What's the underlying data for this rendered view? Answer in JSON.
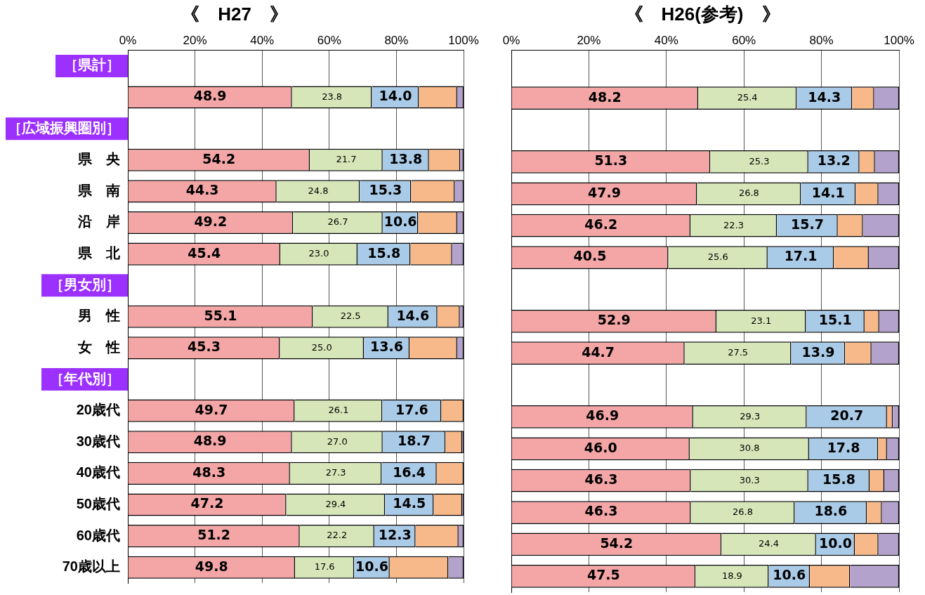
{
  "chart_data": [
    {
      "type": "bar",
      "title": "《　H27　》",
      "orientation": "horizontal",
      "stacked": true,
      "grid": "x",
      "legend": false,
      "categories": [
        "［県計］",
        null,
        "［広域振興圏別］",
        "県　央",
        "県　南",
        "沿　岸",
        "県　北",
        "［男女別］",
        "男　性",
        "女　性",
        "［年代別］",
        "20歳代",
        "30歳代",
        "40歳代",
        "50歳代",
        "60歳代",
        "70歳以上"
      ],
      "xlim": [
        0,
        100
      ],
      "xticks": [
        {
          "value": 0,
          "label": "0%"
        },
        {
          "value": 20,
          "label": "20%"
        },
        {
          "value": 40,
          "label": "40%"
        },
        {
          "value": 60,
          "label": "60%"
        },
        {
          "value": 80,
          "label": "80%"
        },
        {
          "value": 100,
          "label": "100%"
        }
      ],
      "series": [
        {
          "color": "#f4a6a6",
          "values": [
            null,
            48.9,
            null,
            54.2,
            44.3,
            49.2,
            45.4,
            null,
            55.1,
            45.3,
            null,
            49.7,
            48.9,
            48.3,
            47.2,
            51.2,
            49.8
          ],
          "value_labels": [
            null,
            "48.9",
            null,
            "54.2",
            "44.3",
            "49.2",
            "45.4",
            null,
            "55.1",
            "45.3",
            null,
            "49.7",
            "48.9",
            "48.3",
            "47.2",
            "51.2",
            "49.8"
          ]
        },
        {
          "color": "#d6e6b8",
          "values": [
            null,
            23.8,
            null,
            21.7,
            24.8,
            26.7,
            23.0,
            null,
            22.5,
            25.0,
            null,
            26.1,
            27.0,
            27.3,
            29.4,
            22.2,
            17.6
          ],
          "value_labels": [
            null,
            "23.8",
            null,
            "21.7",
            "24.8",
            "26.7",
            "23.0",
            null,
            "22.5",
            "25.0",
            null,
            "26.1",
            "27.0",
            "27.3",
            "29.4",
            "22.2",
            "17.6"
          ]
        },
        {
          "color": "#a9cbe8",
          "values": [
            null,
            14.0,
            null,
            13.8,
            15.3,
            10.6,
            15.8,
            null,
            14.6,
            13.6,
            null,
            17.6,
            18.7,
            16.4,
            14.5,
            12.3,
            10.6
          ],
          "value_labels": [
            null,
            "14.0",
            null,
            "13.8",
            "15.3",
            "10.6",
            "15.8",
            null,
            "14.6",
            "13.6",
            null,
            "17.6",
            "18.7",
            "16.4",
            "14.5",
            "12.3",
            "10.6"
          ]
        },
        {
          "color": "#f7b98a",
          "values": [
            null,
            11.4,
            null,
            9.3,
            13.0,
            11.6,
            12.4,
            null,
            6.7,
            14.2,
            null,
            6.6,
            5.0,
            8.0,
            8.5,
            12.8,
            17.5
          ]
        },
        {
          "color": "#b3a2cc",
          "values": [
            null,
            1.9,
            null,
            1.0,
            2.6,
            1.9,
            3.4,
            null,
            1.1,
            1.9,
            null,
            0,
            0.4,
            0,
            0.4,
            1.5,
            4.5
          ]
        }
      ]
    },
    {
      "type": "bar",
      "title": "《　H26(参考)　》",
      "orientation": "horizontal",
      "stacked": true,
      "grid": "x",
      "legend": false,
      "categories": [
        null,
        null,
        null,
        null,
        null,
        null,
        null,
        null,
        null,
        null,
        null,
        null,
        null,
        null,
        null,
        null,
        null
      ],
      "xlim": [
        0,
        100
      ],
      "xticks": [
        {
          "value": 0,
          "label": "0%"
        },
        {
          "value": 20,
          "label": "20%"
        },
        {
          "value": 40,
          "label": "40%"
        },
        {
          "value": 60,
          "label": "60%"
        },
        {
          "value": 80,
          "label": "80%"
        },
        {
          "value": 100,
          "label": "100%"
        }
      ],
      "series": [
        {
          "color": "#f4a6a6",
          "values": [
            null,
            48.2,
            null,
            51.3,
            47.9,
            46.2,
            40.5,
            null,
            52.9,
            44.7,
            null,
            46.9,
            46.0,
            46.3,
            46.3,
            54.2,
            47.5
          ],
          "value_labels": [
            null,
            "48.2",
            null,
            "51.3",
            "47.9",
            "46.2",
            "40.5",
            null,
            "52.9",
            "44.7",
            null,
            "46.9",
            "46.0",
            "46.3",
            "46.3",
            "54.2",
            "47.5"
          ]
        },
        {
          "color": "#d6e6b8",
          "values": [
            null,
            25.4,
            null,
            25.3,
            26.8,
            22.3,
            25.6,
            null,
            23.1,
            27.5,
            null,
            29.3,
            30.8,
            30.3,
            26.8,
            24.4,
            18.9
          ],
          "value_labels": [
            null,
            "25.4",
            null,
            "25.3",
            "26.8",
            "22.3",
            "25.6",
            null,
            "23.1",
            "27.5",
            null,
            "29.3",
            "30.8",
            "30.3",
            "26.8",
            "24.4",
            "18.9"
          ]
        },
        {
          "color": "#a9cbe8",
          "values": [
            null,
            14.3,
            null,
            13.2,
            14.1,
            15.7,
            17.1,
            null,
            15.1,
            13.9,
            null,
            20.7,
            17.8,
            15.8,
            18.6,
            10.0,
            10.6
          ],
          "value_labels": [
            null,
            "14.3",
            null,
            "13.2",
            "14.1",
            "15.7",
            "17.1",
            null,
            "15.1",
            "13.9",
            null,
            "20.7",
            "17.8",
            "15.8",
            "18.6",
            "10.0",
            "10.6"
          ]
        },
        {
          "color": "#f7b98a",
          "values": [
            null,
            5.7,
            null,
            4.0,
            5.9,
            6.5,
            9.0,
            null,
            3.8,
            6.8,
            null,
            1.5,
            2.3,
            3.8,
            3.9,
            6.1,
            10.4
          ]
        },
        {
          "color": "#b3a2cc",
          "values": [
            null,
            6.4,
            null,
            6.2,
            5.3,
            9.3,
            7.8,
            null,
            5.1,
            7.1,
            null,
            1.6,
            3.1,
            3.8,
            4.4,
            5.3,
            12.6
          ]
        }
      ]
    }
  ]
}
